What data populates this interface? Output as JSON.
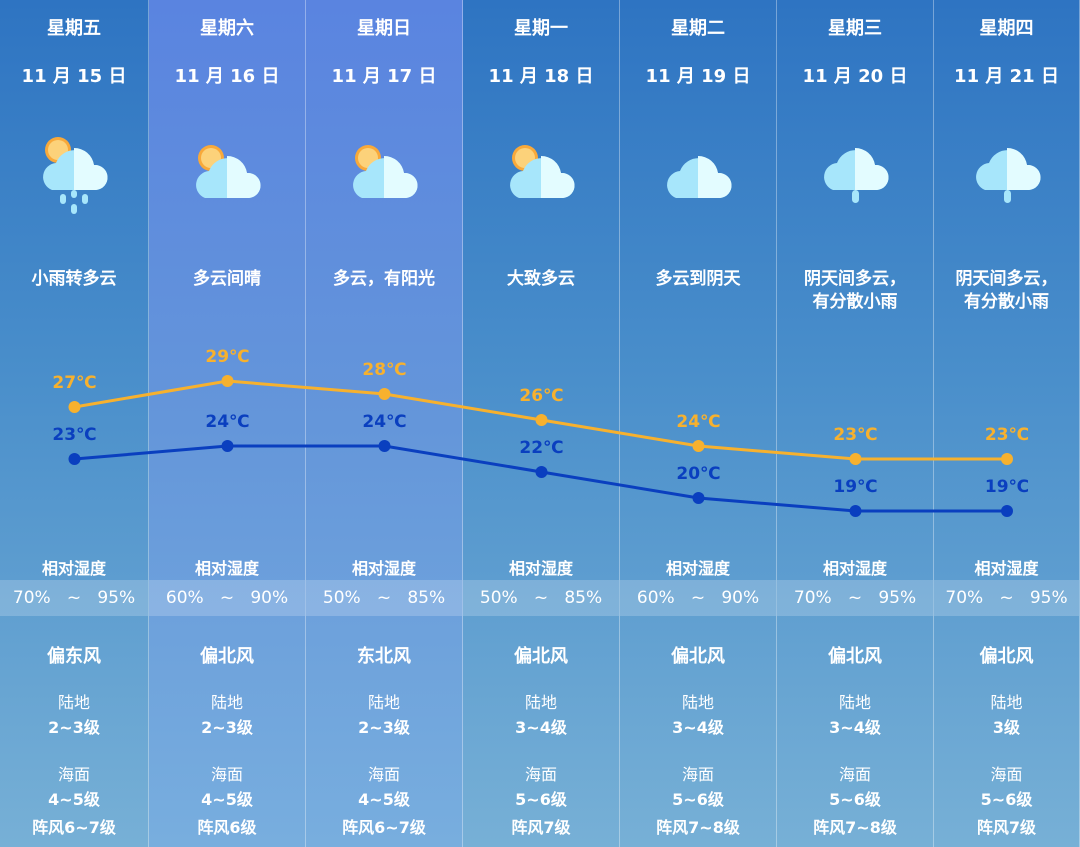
{
  "days": [
    {
      "weekday": "星期五",
      "date": "11 月 15 日",
      "icon": "sun-cloud-rain-icon",
      "desc": "小雨转多云",
      "humidity": "70%   ~   95%",
      "wind": "偏东风",
      "land": "2~3级",
      "sea": "4~5级",
      "gust": "阵风6~7级",
      "highlight": false
    },
    {
      "weekday": "星期六",
      "date": "11 月 16 日",
      "icon": "sun-cloud-icon",
      "desc": "多云间晴",
      "humidity": "60%   ~   90%",
      "wind": "偏北风",
      "land": "2~3级",
      "sea": "4~5级",
      "gust": "阵风6级",
      "highlight": true
    },
    {
      "weekday": "星期日",
      "date": "11 月 17 日",
      "icon": "sun-cloud-icon",
      "desc": "多云，有阳光",
      "humidity": "50%   ~   85%",
      "wind": "东北风",
      "land": "2~3级",
      "sea": "4~5级",
      "gust": "阵风6~7级",
      "highlight": true
    },
    {
      "weekday": "星期一",
      "date": "11 月 18 日",
      "icon": "sun-cloud-icon",
      "desc": "大致多云",
      "humidity": "50%   ~   85%",
      "wind": "偏北风",
      "land": "3~4级",
      "sea": "5~6级",
      "gust": "阵风7级",
      "highlight": false
    },
    {
      "weekday": "星期二",
      "date": "11 月 19 日",
      "icon": "cloud-icon",
      "desc": "多云到阴天",
      "humidity": "60%   ~   90%",
      "wind": "偏北风",
      "land": "3~4级",
      "sea": "5~6级",
      "gust": "阵风7~8级",
      "highlight": false
    },
    {
      "weekday": "星期三",
      "date": "11 月 20 日",
      "icon": "cloud-rain-icon",
      "desc": "阴天间多云，\n有分散小雨",
      "humidity": "70%   ~   95%",
      "wind": "偏北风",
      "land": "3~4级",
      "sea": "5~6级",
      "gust": "阵风7~8级",
      "highlight": false
    },
    {
      "weekday": "星期四",
      "date": "11 月 21 日",
      "icon": "cloud-rain-icon",
      "desc": "阴天间多云，\n有分散小雨",
      "humidity": "70%   ~   95%",
      "wind": "偏北风",
      "land": "3级",
      "sea": "5~6级",
      "gust": "阵风7级",
      "highlight": false
    }
  ],
  "labels": {
    "humidity": "相对湿度",
    "land": "陆地",
    "sea": "海面"
  },
  "chart_data": {
    "type": "line",
    "categories": [
      "11月15日",
      "11月16日",
      "11月17日",
      "11月18日",
      "11月19日",
      "11月20日",
      "11月21日"
    ],
    "unit": "℃",
    "series": [
      {
        "key": "high",
        "values": [
          27,
          29,
          28,
          26,
          24,
          23,
          23
        ],
        "color": "#f7b12e"
      },
      {
        "key": "low",
        "values": [
          23,
          24,
          24,
          22,
          20,
          19,
          19
        ],
        "color": "#0a3fbf"
      }
    ]
  }
}
